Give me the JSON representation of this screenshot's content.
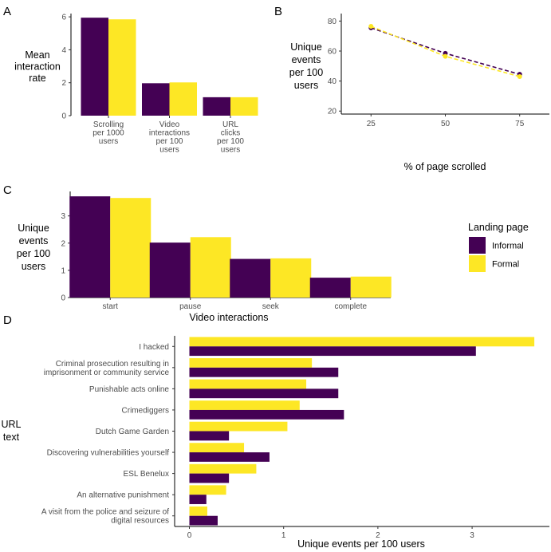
{
  "colors": {
    "informal": "#440154",
    "formal": "#fde725"
  },
  "legend": {
    "title": "Landing page",
    "items": [
      "Informal",
      "Formal"
    ]
  },
  "chart_data": [
    {
      "panel": "A",
      "type": "bar",
      "ylabel": [
        "Mean",
        "interaction",
        "rate"
      ],
      "ylim": [
        0,
        6.2
      ],
      "yticks": [
        "0",
        "2",
        "4",
        "6"
      ],
      "categories": [
        [
          "Scrolling",
          "per 1000",
          "users"
        ],
        [
          "Video",
          "interactions",
          "per 100",
          "users"
        ],
        [
          "URL",
          "clicks",
          "per 100",
          "users"
        ]
      ],
      "series": [
        {
          "name": "Informal",
          "values": [
            5.95,
            1.97,
            1.12
          ]
        },
        {
          "name": "Formal",
          "values": [
            5.85,
            2.02,
            1.12
          ]
        }
      ]
    },
    {
      "panel": "B",
      "type": "line",
      "ylabel": [
        "Unique",
        "events",
        "per 100",
        "users"
      ],
      "xlabel": "% of page scrolled",
      "xlim": [
        15,
        85
      ],
      "ylim": [
        18,
        85
      ],
      "xticks": [
        "25",
        "50",
        "75"
      ],
      "yticks": [
        "20",
        "40",
        "60",
        "80"
      ],
      "x": [
        25,
        50,
        75
      ],
      "series": [
        {
          "name": "Informal",
          "values": [
            75.5,
            58.5,
            44.5
          ]
        },
        {
          "name": "Formal",
          "values": [
            76.5,
            56.5,
            43.0
          ]
        }
      ]
    },
    {
      "panel": "C",
      "type": "bar",
      "ylabel": [
        "Unique",
        "events",
        "per 100",
        "users"
      ],
      "xlabel": "Video interactions",
      "ylim": [
        0,
        3.9
      ],
      "yticks": [
        "0",
        "1",
        "2",
        "3"
      ],
      "categories": [
        "start",
        "pause",
        "seek",
        "complete"
      ],
      "series": [
        {
          "name": "Informal",
          "values": [
            3.72,
            2.02,
            1.42,
            0.73
          ]
        },
        {
          "name": "Formal",
          "values": [
            3.66,
            2.22,
            1.44,
            0.77
          ]
        }
      ]
    },
    {
      "panel": "D",
      "type": "bar",
      "orientation": "horizontal",
      "ylabel": [
        "URL",
        "text"
      ],
      "xlabel": "Unique events per 100 users",
      "xlim": [
        0,
        3.82
      ],
      "xticks": [
        "0",
        "1",
        "2",
        "3"
      ],
      "categories": [
        [
          "I hacked"
        ],
        [
          "Criminal prosecution resulting in",
          "imprisonment or community service"
        ],
        [
          "Punishable acts online"
        ],
        [
          "Crimediggers"
        ],
        [
          "Dutch Game Garden"
        ],
        [
          "Discovering vulnerabilities yourself"
        ],
        [
          "ESL Benelux"
        ],
        [
          "An alternative punishment"
        ],
        [
          "A visit from the police and seizure of",
          "digital resources"
        ]
      ],
      "series": [
        {
          "name": "Informal",
          "values": [
            3.04,
            1.58,
            1.58,
            1.64,
            0.42,
            0.85,
            0.42,
            0.18,
            0.3
          ]
        },
        {
          "name": "Formal",
          "values": [
            3.66,
            1.3,
            1.24,
            1.17,
            1.04,
            0.58,
            0.71,
            0.39,
            0.19
          ]
        }
      ]
    }
  ]
}
